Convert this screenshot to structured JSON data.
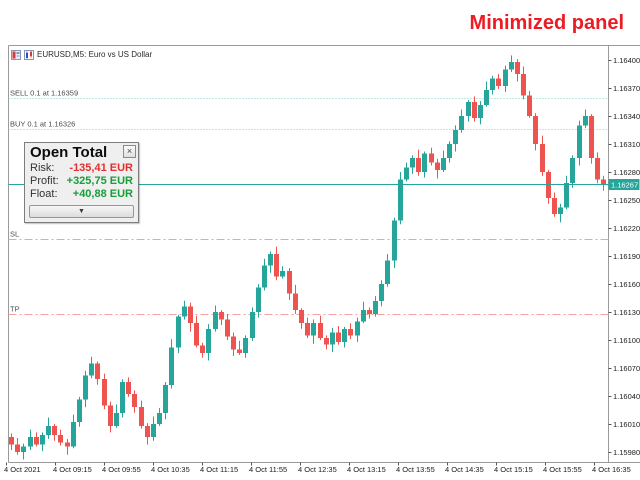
{
  "banner": {
    "text": "Minimized panel"
  },
  "chart": {
    "header": "EURUSD,M5: Euro vs US Dollar"
  },
  "panel": {
    "title": "Open Total",
    "close_glyph": "×",
    "collapse_glyph": "▼",
    "rows": [
      {
        "label": "Risk:",
        "value": "-135,41 EUR",
        "tone": "negative"
      },
      {
        "label": "Profit:",
        "value": "+325,75 EUR",
        "tone": "positive"
      },
      {
        "label": "Float:",
        "value": "+40,88 EUR",
        "tone": "positive"
      }
    ]
  },
  "colors": {
    "banner_red": "#ed1c24",
    "bull": "#26a69a",
    "bear": "#ef5350",
    "order_line": "#7ed0c9",
    "sltp_line": "#f2a19e",
    "bid_line": "#26a69a",
    "bid_tag_bg": "#26a69a",
    "bid_tag_text": "#ffffff",
    "negative": "#e03131",
    "positive": "#169e38",
    "axis_text": "#1a1a1a",
    "frame": "#9a9a9a"
  },
  "chart_data": {
    "type": "candlestick",
    "symbol": "EURUSD",
    "timeframe": "M5",
    "title": "EURUSD,M5: Euro vs US Dollar",
    "ylim": [
      1.1597,
      1.1641
    ],
    "grid": false,
    "price_ticks": [
      "1.16400",
      "1.16370",
      "1.16340",
      "1.16310",
      "1.16280",
      "1.16250",
      "1.16220",
      "1.16190",
      "1.16160",
      "1.16130",
      "1.16100",
      "1.16070",
      "1.16040",
      "1.16010",
      "1.15980"
    ],
    "time_ticks": [
      "4 Oct 2021",
      "4 Oct 09:15",
      "4 Oct 09:55",
      "4 Oct 10:35",
      "4 Oct 11:15",
      "4 Oct 11:55",
      "4 Oct 12:35",
      "4 Oct 13:15",
      "4 Oct 13:55",
      "4 Oct 14:35",
      "4 Oct 15:15",
      "4 Oct 15:55",
      "4 Oct 16:35"
    ],
    "first_open": 1.15996,
    "closes": [
      1.15988,
      1.1598,
      1.15986,
      1.15996,
      1.15988,
      1.15998,
      1.16008,
      1.15998,
      1.1599,
      1.15986,
      1.16012,
      1.16036,
      1.16062,
      1.16075,
      1.16058,
      1.1603,
      1.16008,
      1.16022,
      1.16055,
      1.16042,
      1.16028,
      1.16008,
      1.15996,
      1.1601,
      1.16022,
      1.16052,
      1.16092,
      1.16125,
      1.16136,
      1.16118,
      1.16094,
      1.16086,
      1.16112,
      1.1613,
      1.16122,
      1.16104,
      1.1609,
      1.16086,
      1.16102,
      1.1613,
      1.16156,
      1.1618,
      1.16192,
      1.16168,
      1.16174,
      1.1615,
      1.16132,
      1.16118,
      1.16105,
      1.16118,
      1.16102,
      1.16095,
      1.16108,
      1.16098,
      1.16112,
      1.16105,
      1.1612,
      1.16132,
      1.16128,
      1.16142,
      1.1616,
      1.16185,
      1.16228,
      1.16272,
      1.16285,
      1.16295,
      1.1628,
      1.163,
      1.1629,
      1.16282,
      1.16295,
      1.1631,
      1.16325,
      1.1634,
      1.16355,
      1.16338,
      1.16352,
      1.16368,
      1.1638,
      1.16372,
      1.1639,
      1.16398,
      1.16385,
      1.16362,
      1.1634,
      1.1631,
      1.1628,
      1.16252,
      1.16235,
      1.16242,
      1.16268,
      1.16295,
      1.1633,
      1.1634,
      1.16295,
      1.16272,
      1.16267
    ],
    "wick_up": [
      4,
      7,
      3,
      8,
      5,
      3,
      9,
      2,
      6,
      4,
      8,
      3,
      5,
      7,
      2,
      6,
      4,
      9,
      3,
      5
    ],
    "wick_down": [
      6,
      3,
      8,
      4,
      2,
      7,
      4,
      6,
      3,
      9,
      2,
      5,
      8,
      3,
      6,
      4,
      7,
      2,
      5,
      3
    ],
    "levels": [
      {
        "name": "sell-order",
        "label": "SELL 0.1 at 1.16359",
        "price": 1.16359,
        "style": "dotted",
        "color_key": "order_line"
      },
      {
        "name": "buy-order",
        "label": "BUY 0.1 at 1.16326",
        "price": 1.16326,
        "style": "dotted",
        "color_key": "order_line"
      },
      {
        "name": "stop-loss",
        "label": "SL",
        "price": 1.16208,
        "style": "dashdot",
        "color_key": "sltp_line"
      },
      {
        "name": "take-profit",
        "label": "TP",
        "price": 1.16128,
        "style": "dashdot",
        "color_key": "sltp_line"
      }
    ],
    "bid": {
      "price": 1.16267,
      "label": "1.16267"
    }
  }
}
